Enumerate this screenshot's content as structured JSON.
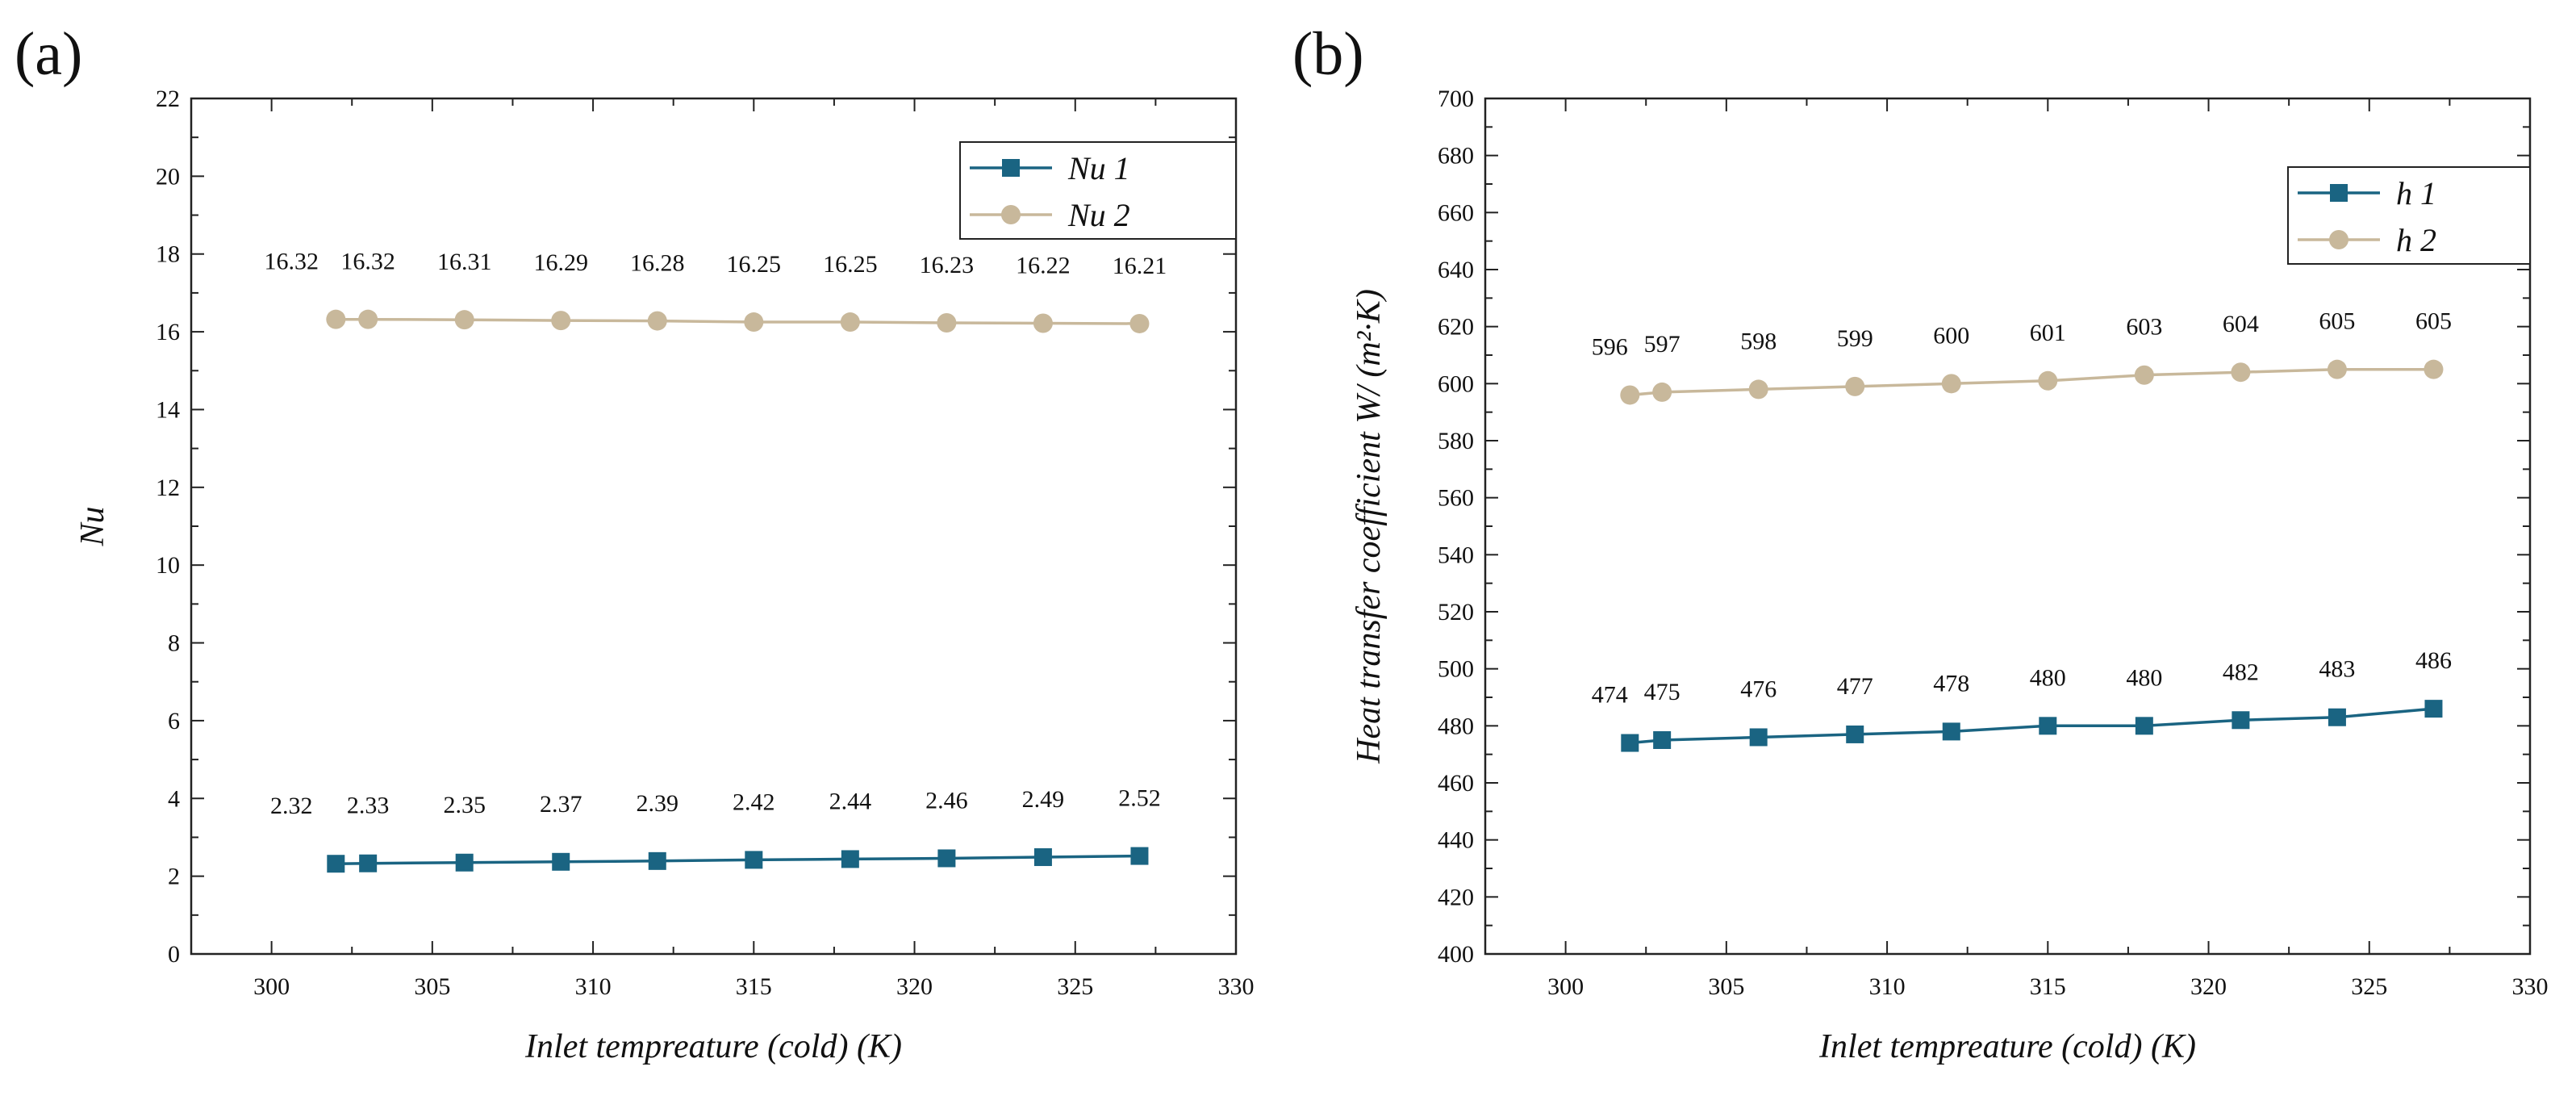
{
  "chart_data": [
    {
      "type": "line",
      "panel_label": "(a)",
      "title": "",
      "xlabel": "Inlet tempreature (cold) (K)",
      "ylabel": "Nu",
      "xlim": [
        297.5,
        330
      ],
      "ylim": [
        0,
        22
      ],
      "xticks": [
        300,
        305,
        310,
        315,
        320,
        325,
        330
      ],
      "yticks": [
        0,
        2,
        4,
        6,
        8,
        10,
        12,
        14,
        16,
        18,
        20,
        22
      ],
      "legend_position": "top-right",
      "grid": false,
      "series": [
        {
          "name": "Nu 1",
          "marker": "square",
          "color": "#1a6482",
          "x": [
            302,
            303,
            306,
            309,
            312,
            315,
            318,
            321,
            324,
            327
          ],
          "y": [
            2.32,
            2.33,
            2.35,
            2.37,
            2.39,
            2.42,
            2.44,
            2.46,
            2.49,
            2.52
          ],
          "labels": [
            "2.32",
            "2.33",
            "2.35",
            "2.37",
            "2.39",
            "2.42",
            "2.44",
            "2.46",
            "2.49",
            "2.52"
          ]
        },
        {
          "name": "Nu 2",
          "marker": "circle",
          "color": "#c8b89b",
          "x": [
            302,
            303,
            306,
            309,
            312,
            315,
            318,
            321,
            324,
            327
          ],
          "y": [
            16.32,
            16.32,
            16.31,
            16.29,
            16.28,
            16.25,
            16.25,
            16.23,
            16.22,
            16.21
          ],
          "labels": [
            "16.32",
            "16.32",
            "16.31",
            "16.29",
            "16.28",
            "16.25",
            "16.25",
            "16.23",
            "16.22",
            "16.21"
          ]
        }
      ]
    },
    {
      "type": "line",
      "panel_label": "(b)",
      "title": "",
      "xlabel": "Inlet tempreature (cold) (K)",
      "ylabel": "Heat transfer coefficient W/ (m²·K)",
      "xlim": [
        297.5,
        330
      ],
      "ylim": [
        400,
        700
      ],
      "xticks": [
        300,
        305,
        310,
        315,
        320,
        325,
        330
      ],
      "yticks": [
        400,
        420,
        440,
        460,
        480,
        500,
        520,
        540,
        560,
        580,
        600,
        620,
        640,
        660,
        680,
        700
      ],
      "legend_position": "top-right",
      "grid": false,
      "series": [
        {
          "name": "h 1",
          "marker": "square",
          "color": "#1a6482",
          "x": [
            302,
            303,
            306,
            309,
            312,
            315,
            318,
            321,
            324,
            327
          ],
          "y": [
            474,
            475,
            476,
            477,
            478,
            480,
            480,
            482,
            483,
            486
          ],
          "labels": [
            "474",
            "475",
            "476",
            "477",
            "478",
            "480",
            "480",
            "482",
            "483",
            "486"
          ]
        },
        {
          "name": "h 2",
          "marker": "circle",
          "color": "#c8b89b",
          "x": [
            302,
            303,
            306,
            309,
            312,
            315,
            318,
            321,
            324,
            327
          ],
          "y": [
            596,
            597,
            598,
            599,
            600,
            601,
            603,
            604,
            605,
            605
          ],
          "labels": [
            "596",
            "597",
            "598",
            "599",
            "600",
            "601",
            "603",
            "604",
            "605",
            "605"
          ]
        }
      ]
    }
  ]
}
